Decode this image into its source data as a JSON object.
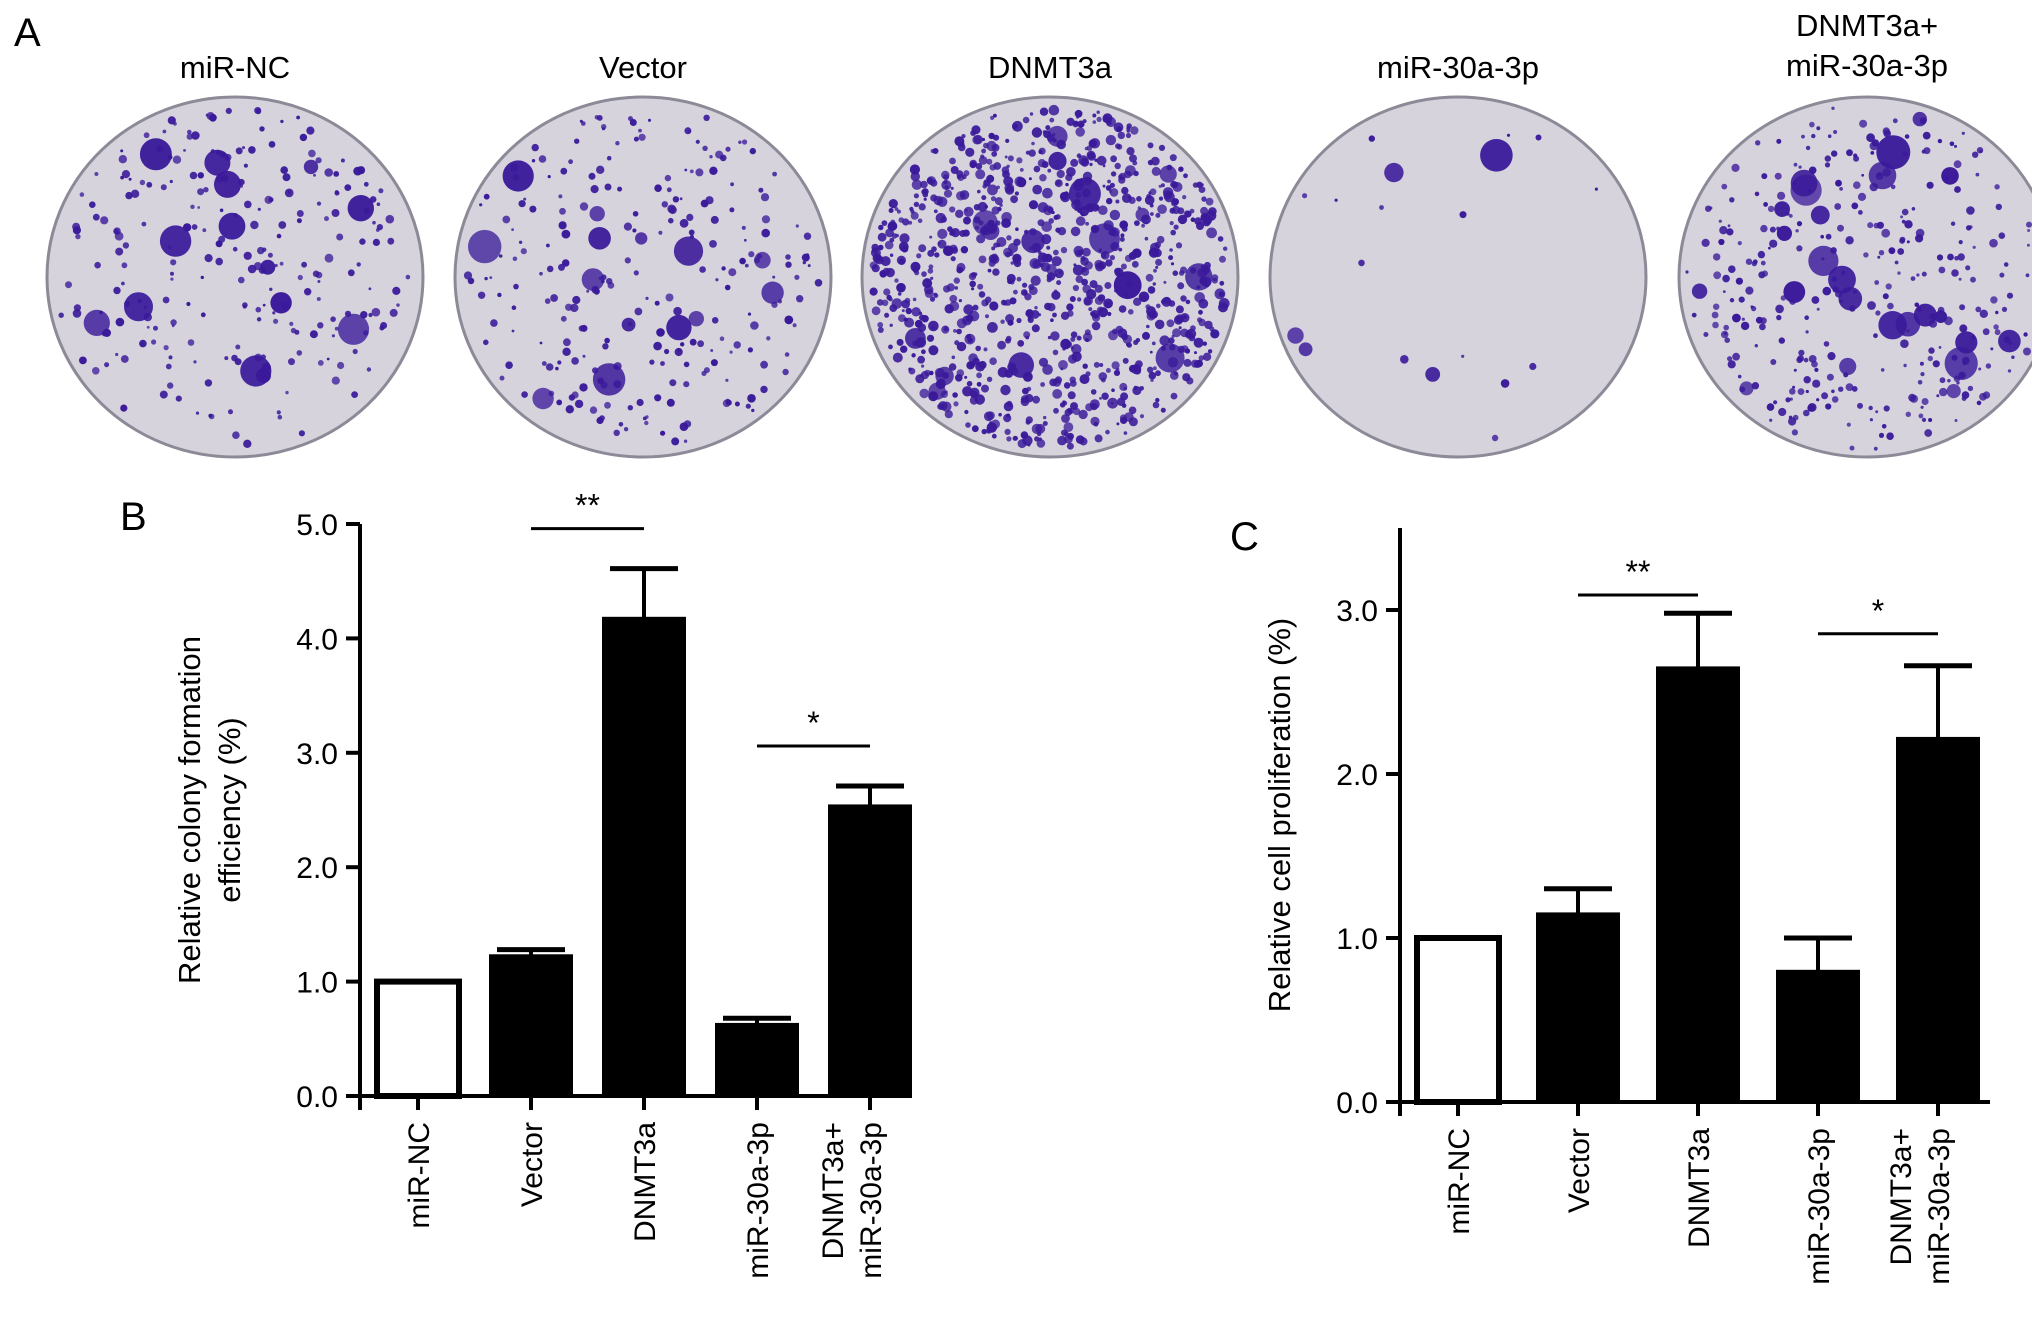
{
  "panels": {
    "A": {
      "label": "A",
      "dishes": [
        {
          "label_lines": [
            "miR-NC"
          ],
          "density": "moderate"
        },
        {
          "label_lines": [
            "Vector"
          ],
          "density": "moderate"
        },
        {
          "label_lines": [
            "DNMT3a"
          ],
          "density": "very high"
        },
        {
          "label_lines": [
            "miR-30a-3p"
          ],
          "density": "very low"
        },
        {
          "label_lines": [
            "DNMT3a+",
            "miR-30a-3p"
          ],
          "density": "high"
        }
      ],
      "colors": {
        "plate": "#d6d3dc",
        "plate_rim": "#8d8a98",
        "colony": "#3a1a9a"
      }
    },
    "B": {
      "label": "B"
    },
    "C": {
      "label": "C"
    }
  },
  "chart_data": [
    {
      "panel": "B",
      "type": "bar",
      "categories": [
        "miR-NC",
        "Vector",
        "DNMT3a",
        "miR-30a-3p",
        "DNMT3a+\nmiR-30a-3p"
      ],
      "values": [
        1.0,
        1.23,
        4.18,
        0.63,
        2.54
      ],
      "errors": [
        0.0,
        0.05,
        0.43,
        0.05,
        0.17
      ],
      "fills": [
        "#ffffff",
        "#000000",
        "#000000",
        "#000000",
        "#000000"
      ],
      "title": "",
      "xlabel": "",
      "ylabel": "Relative colony formation\nefficiency (%)",
      "ylim": [
        0,
        5
      ],
      "yticks": [
        "0.0",
        "1.0",
        "2.0",
        "3.0",
        "4.0",
        "5.0"
      ],
      "significance": [
        {
          "from": 1,
          "to": 2,
          "label": "**"
        },
        {
          "from": 3,
          "to": 4,
          "label": "*"
        }
      ],
      "grid": false
    },
    {
      "panel": "C",
      "type": "bar",
      "categories": [
        "miR-NC",
        "Vector",
        "DNMT3a",
        "miR-30a-3p",
        "DNMT3a+\nmiR-30a-3p"
      ],
      "values": [
        1.0,
        1.15,
        2.65,
        0.8,
        2.22
      ],
      "errors": [
        0.0,
        0.15,
        0.33,
        0.2,
        0.44
      ],
      "fills": [
        "#ffffff",
        "#000000",
        "#000000",
        "#000000",
        "#000000"
      ],
      "title": "",
      "xlabel": "",
      "ylabel": "Relative cell proliferation (%)",
      "ylim": [
        0,
        3.5
      ],
      "yticks": [
        "0.0",
        "1.0",
        "2.0",
        "3.0"
      ],
      "significance": [
        {
          "from": 1,
          "to": 2,
          "label": "**"
        },
        {
          "from": 3,
          "to": 4,
          "label": "*"
        }
      ],
      "grid": false
    }
  ]
}
